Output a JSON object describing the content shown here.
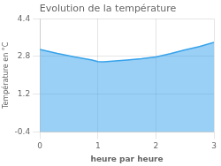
{
  "chart_data": {
    "type": "area",
    "title": "Evolution de la température",
    "xlabel": "heure par heure",
    "ylabel": "Température en °C",
    "x": [
      0,
      0.3,
      0.6,
      0.9,
      1.0,
      1.1,
      1.25,
      1.5,
      1.75,
      2.0,
      2.25,
      2.5,
      2.75,
      3.0
    ],
    "values": [
      3.1,
      2.93,
      2.78,
      2.65,
      2.58,
      2.57,
      2.6,
      2.65,
      2.7,
      2.78,
      2.92,
      3.08,
      3.22,
      3.4
    ],
    "xlim": [
      0,
      3
    ],
    "ylim": [
      -0.4,
      4.4
    ],
    "xticks": [
      0,
      1,
      2,
      3
    ],
    "yticks": [
      -0.4,
      1.2,
      2.8,
      4.4
    ],
    "grid": true
  }
}
